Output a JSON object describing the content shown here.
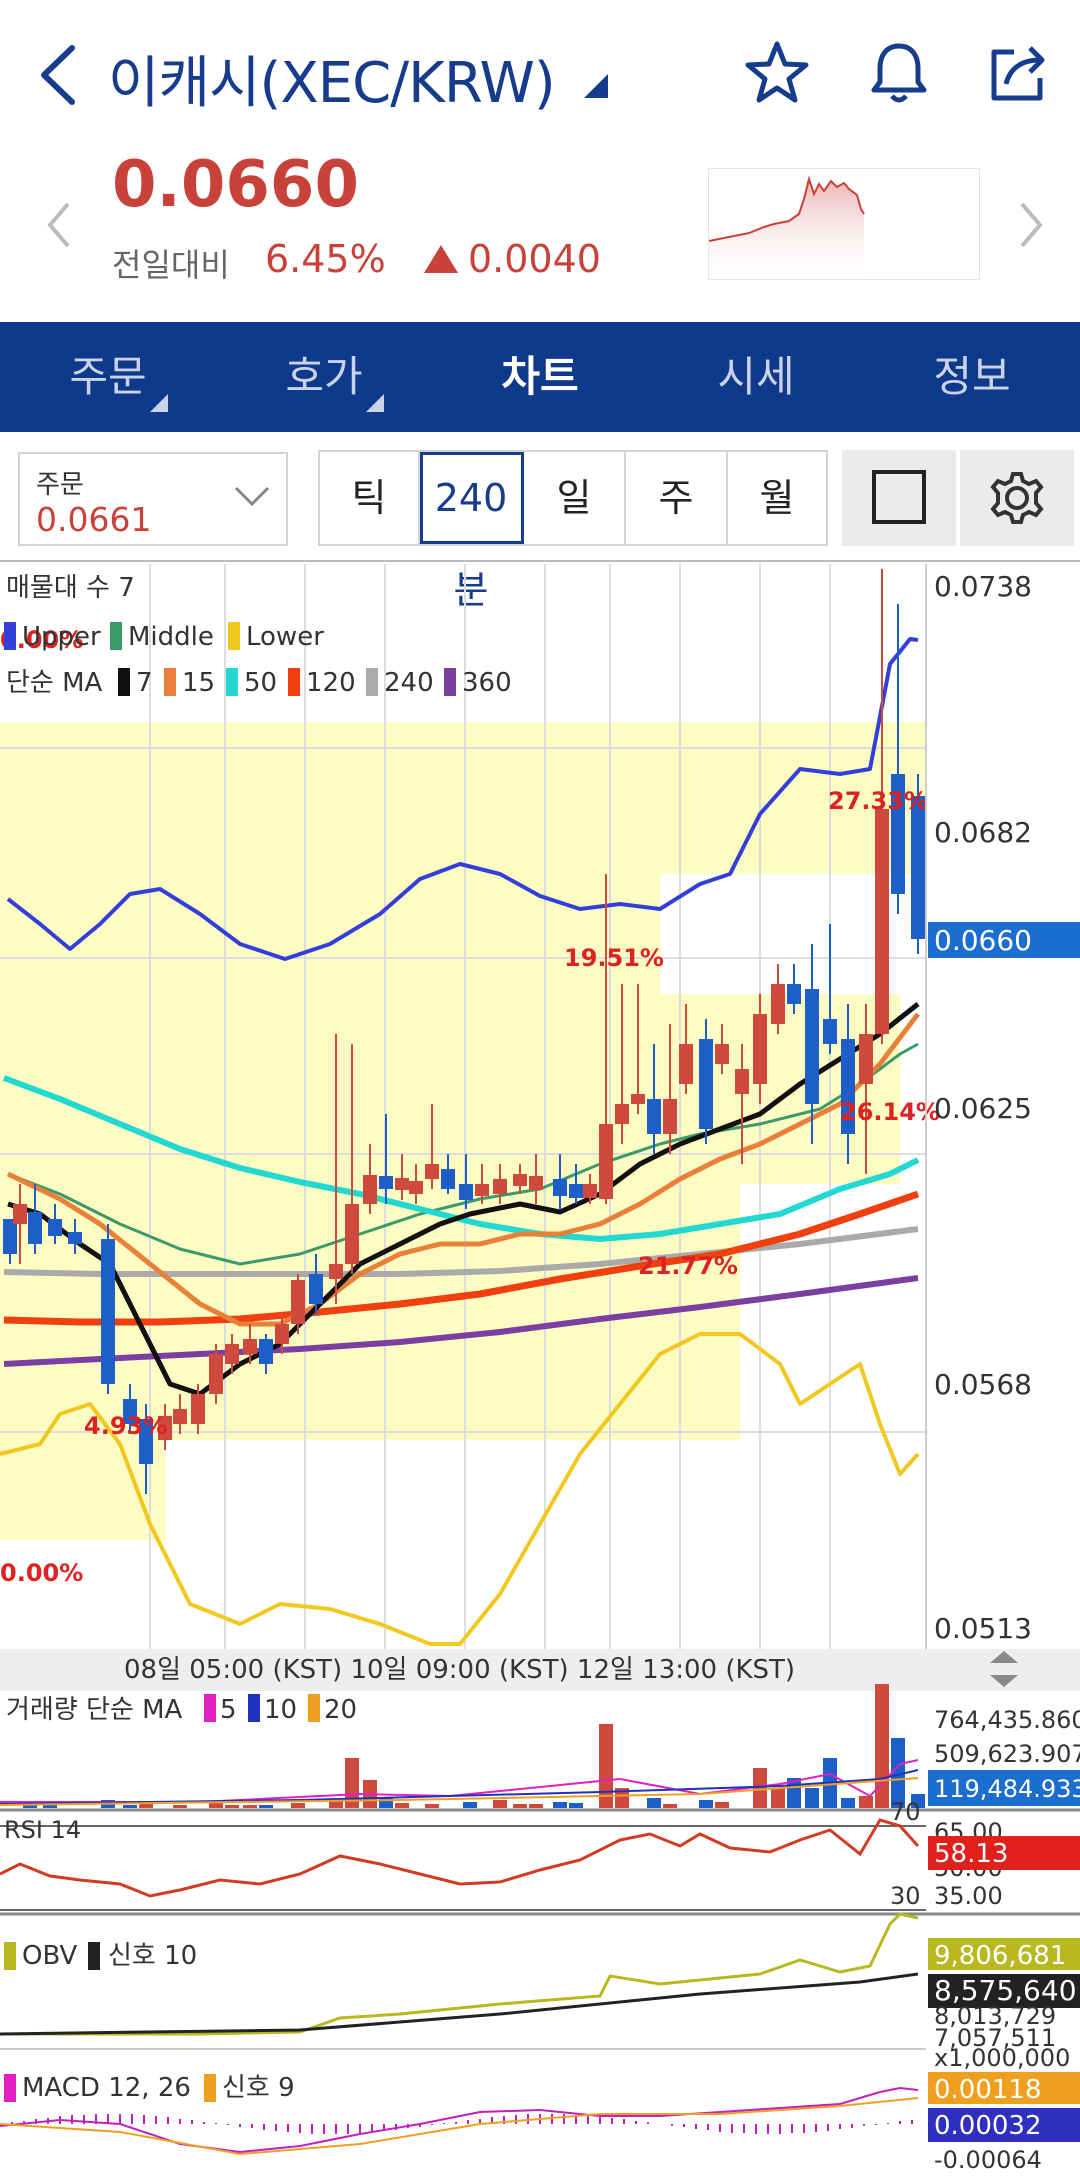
{
  "header": {
    "title": "이캐시(XEC/KRW)",
    "price": "0.0660",
    "change_label": "전일대비",
    "change_pct": "6.45%",
    "change_amount": "0.0040",
    "up_color": "#c9423a",
    "brand_color": "#173c8e"
  },
  "tabs": [
    {
      "label": "주문",
      "active": false
    },
    {
      "label": "호가",
      "active": false
    },
    {
      "label": "차트",
      "active": true
    },
    {
      "label": "시세",
      "active": false
    },
    {
      "label": "정보",
      "active": false
    }
  ],
  "toolbar": {
    "order_label": "주문",
    "order_value": "0.0661",
    "periods": [
      "틱",
      "240분",
      "일",
      "주",
      "월"
    ],
    "active_period": "240분"
  },
  "chart": {
    "price_axis": [
      "0.0738",
      "0.0682",
      "0.0625",
      "0.0568",
      "0.0513"
    ],
    "current_price_tag": "0.0660",
    "legend_volume_profile": "매물대 수 7",
    "legend_bollinger": [
      "Upper",
      "Middle",
      "Lower"
    ],
    "legend_ma_prefix": "단순 MA",
    "legend_ma": [
      {
        "period": "7",
        "color": "#111111"
      },
      {
        "period": "15",
        "color": "#e8803a"
      },
      {
        "period": "50",
        "color": "#22d8d0"
      },
      {
        "period": "120",
        "color": "#f04010"
      },
      {
        "period": "240",
        "color": "#aaaaaa"
      },
      {
        "period": "360",
        "color": "#7a3fa0"
      }
    ],
    "profile_labels": [
      "0.00%",
      "4.93%",
      "19.51%",
      "27.33%",
      "26.14%",
      "21.77%",
      "0.00%"
    ],
    "time_axis": "08일 05:00 (KST) 10일 09:00 (KST) 12일 13:00 (KST)"
  },
  "volume": {
    "legend_prefix": "거래량 단순 MA",
    "legend_ma": [
      {
        "period": "5",
        "color": "#e020c0"
      },
      {
        "period": "10",
        "color": "#2030c0"
      },
      {
        "period": "20",
        "color": "#f0a020"
      }
    ],
    "axis": [
      "764,435.860",
      "509,623.907"
    ],
    "current_tag": "119,484.933"
  },
  "rsi": {
    "legend": "RSI 14",
    "level_high": "70",
    "level_low": "30",
    "axis": [
      "65.00",
      "50.00",
      "35.00"
    ],
    "current_tag": "58.13"
  },
  "obv": {
    "legend_obv": "OBV",
    "legend_signal": "신호 10",
    "axis": [
      "9,806,681",
      "8,575,640",
      "8,013,729",
      "7,057,511"
    ],
    "multiplier": "x1,000,000"
  },
  "macd": {
    "legend_macd": "MACD 12, 26",
    "legend_signal": "신호 9",
    "axis_top": "0.00118",
    "axis_mid": "0.00032",
    "axis_bottom": "-0.00064"
  }
}
